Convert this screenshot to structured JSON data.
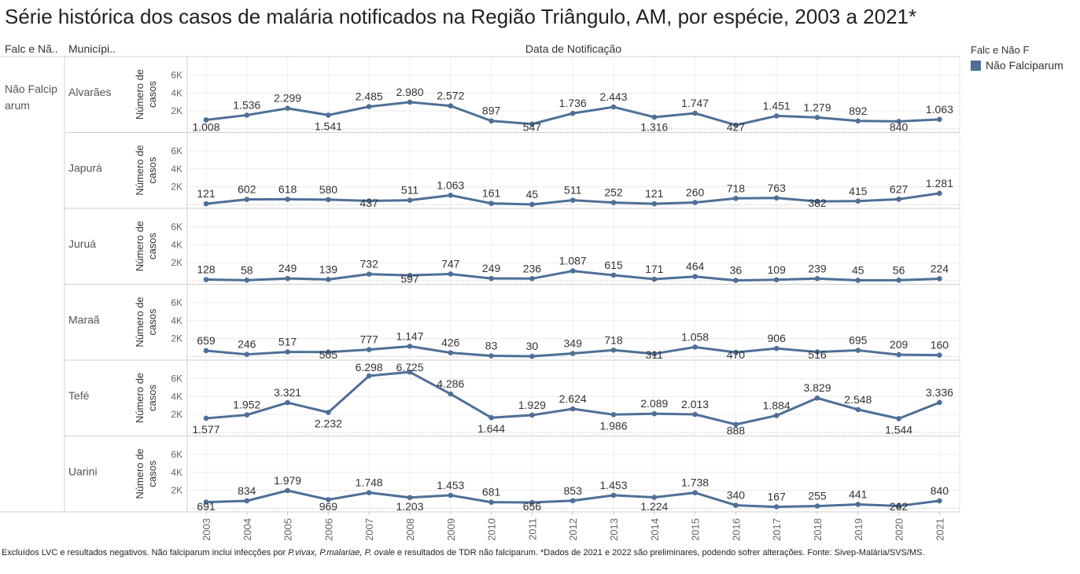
{
  "title": "Série histórica dos casos de malária notificados na Região Triângulo, AM, por espécie, 2003 a 2021*",
  "headers": {
    "col1": "Falc e Nã..",
    "col2": "Municípi..",
    "column_title": "Data de Notificação"
  },
  "species_label": "Não Falcip arum",
  "legend": {
    "title": "Falc e Não F",
    "items": [
      {
        "label": "Não Falciparum",
        "color": "#4e6f97"
      }
    ]
  },
  "footnote": {
    "part1": "Excluídos LVC e resultados negativos. Não falciparum inclui infecções por ",
    "it1": "P.vivax, P.malariae, P. ovale",
    "part2": " e resultados de TDR não falciparum. *Dados de 2021 e 2022 são preliminares, podendo sofrer alterações. Fonte: Sivep-Malária/SVS/MS."
  },
  "chart_data": {
    "type": "line",
    "x": [
      "2003",
      "2004",
      "2005",
      "2006",
      "2007",
      "2008",
      "2009",
      "2010",
      "2011",
      "2012",
      "2013",
      "2014",
      "2015",
      "2016",
      "2017",
      "2018",
      "2019",
      "2020",
      "2021"
    ],
    "ylabel": "Número de casos",
    "yticks": [
      "2K",
      "4K",
      "6K"
    ],
    "ylim": [
      0,
      7000
    ],
    "grid": true,
    "color": "#4e6f97",
    "panels": [
      {
        "municipio": "Alvarães",
        "values": [
          1008,
          1536,
          2299,
          1541,
          2485,
          2980,
          2572,
          897,
          547,
          1736,
          2443,
          1316,
          1747,
          427,
          1451,
          1279,
          892,
          840,
          1063
        ],
        "labels": [
          "1.008",
          "1.536",
          "2.299",
          "1.541",
          "2.485",
          "2.980",
          "2.572",
          "897",
          "547",
          "1.736",
          "2.443",
          "1.316",
          "1.747",
          "427",
          "1.451",
          "1.279",
          "892",
          "840",
          "1.063"
        ]
      },
      {
        "municipio": "Japurá",
        "values": [
          121,
          602,
          618,
          580,
          437,
          511,
          1063,
          161,
          45,
          511,
          252,
          121,
          260,
          718,
          763,
          382,
          415,
          627,
          1281
        ],
        "labels": [
          "121",
          "602",
          "618",
          "580",
          "437",
          "511",
          "1.063",
          "161",
          "45",
          "511",
          "252",
          "121",
          "260",
          "718",
          "763",
          "382",
          "415",
          "627",
          "1.281"
        ]
      },
      {
        "municipio": "Juruá",
        "values": [
          128,
          58,
          249,
          139,
          732,
          597,
          747,
          249,
          236,
          1087,
          615,
          171,
          464,
          36,
          109,
          239,
          45,
          56,
          224
        ],
        "labels": [
          "128",
          "58",
          "249",
          "139",
          "732",
          "597",
          "747",
          "249",
          "236",
          "1.087",
          "615",
          "171",
          "464",
          "36",
          "109",
          "239",
          "45",
          "56",
          "224"
        ]
      },
      {
        "municipio": "Maraã",
        "values": [
          659,
          246,
          517,
          505,
          777,
          1147,
          426,
          83,
          30,
          349,
          718,
          311,
          1058,
          470,
          906,
          516,
          695,
          209,
          160
        ],
        "labels": [
          "659",
          "246",
          "517",
          "505",
          "777",
          "1.147",
          "426",
          "83",
          "30",
          "349",
          "718",
          "311",
          "1.058",
          "470",
          "906",
          "516",
          "695",
          "209",
          "160"
        ]
      },
      {
        "municipio": "Tefé",
        "values": [
          1577,
          1952,
          3321,
          2232,
          6298,
          6725,
          4286,
          1644,
          1929,
          2624,
          1986,
          2089,
          2013,
          888,
          1884,
          3829,
          2548,
          1544,
          3336
        ],
        "labels": [
          "1.577",
          "1.952",
          "3.321",
          "2.232",
          "6.298",
          "6.725",
          "4.286",
          "1.644",
          "1.929",
          "2.624",
          "1.986",
          "2.089",
          "2.013",
          "888",
          "1.884",
          "3.829",
          "2.548",
          "1.544",
          "3.336"
        ]
      },
      {
        "municipio": "Uarini",
        "values": [
          691,
          834,
          1979,
          969,
          1748,
          1203,
          1453,
          681,
          656,
          853,
          1453,
          1224,
          1738,
          340,
          167,
          255,
          441,
          262,
          840
        ],
        "labels": [
          "691",
          "834",
          "1.979",
          "969",
          "1.748",
          "1.203",
          "1.453",
          "681",
          "656",
          "853",
          "1.453",
          "1.224",
          "1.738",
          "340",
          "167",
          "255",
          "441",
          "262",
          "840"
        ]
      }
    ]
  }
}
